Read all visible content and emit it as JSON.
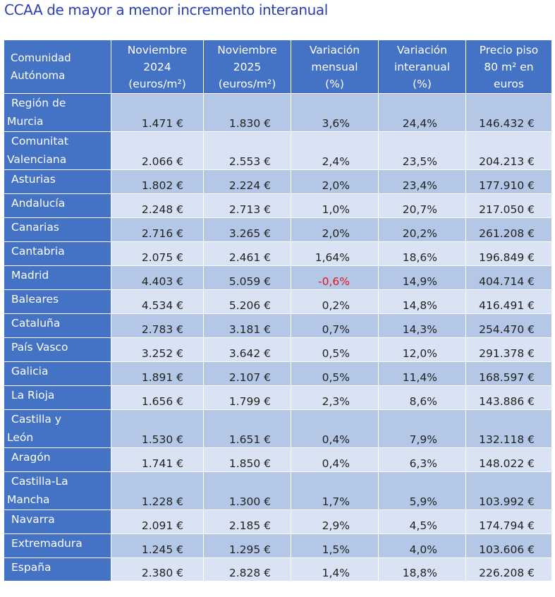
{
  "title": "CCAA de mayor a menor incremento interanual",
  "headers": {
    "comunidad": [
      "Comunidad",
      "Autónoma"
    ],
    "nov2024": [
      "Noviembre",
      "2024",
      "(euros/m²)"
    ],
    "nov2025": [
      "Noviembre",
      "2025",
      "(euros/m²)"
    ],
    "mensual": [
      "Variación",
      "mensual",
      "(%)"
    ],
    "interanual": [
      "Variación",
      "interanual",
      "(%)"
    ],
    "precio": [
      "Precio piso",
      "80 m² en",
      "euros"
    ]
  },
  "rows": [
    {
      "name": [
        "Región de",
        "Murcia"
      ],
      "nov2024": "1.471 €",
      "nov2025": "1.830 €",
      "mensual": "3,6%",
      "interanual": "24,4%",
      "precio": "146.432 €"
    },
    {
      "name": [
        "Comunitat",
        "Valenciana"
      ],
      "nov2024": "2.066 €",
      "nov2025": "2.553 €",
      "mensual": "2,4%",
      "interanual": "23,5%",
      "precio": "204.213 €"
    },
    {
      "name": [
        "Asturias"
      ],
      "nov2024": "1.802 €",
      "nov2025": "2.224 €",
      "mensual": "2,0%",
      "interanual": "23,4%",
      "precio": "177.910 €"
    },
    {
      "name": [
        "Andalucía"
      ],
      "nov2024": "2.248 €",
      "nov2025": "2.713 €",
      "mensual": "1,0%",
      "interanual": "20,7%",
      "precio": "217.050 €"
    },
    {
      "name": [
        "Canarias"
      ],
      "nov2024": "2.716 €",
      "nov2025": "3.265 €",
      "mensual": "2,0%",
      "interanual": "20,2%",
      "precio": "261.208 €"
    },
    {
      "name": [
        "Cantabria"
      ],
      "nov2024": "2.075 €",
      "nov2025": "2.461 €",
      "mensual": "1,64%",
      "interanual": "18,6%",
      "precio": "196.849 €"
    },
    {
      "name": [
        "Madrid"
      ],
      "nov2024": "4.403 €",
      "nov2025": "5.059 €",
      "mensual": "-0,6%",
      "interanual": "14,9%",
      "precio": "404.714 €",
      "negative": true
    },
    {
      "name": [
        "Baleares"
      ],
      "nov2024": "4.534 €",
      "nov2025": "5.206 €",
      "mensual": "0,2%",
      "interanual": "14,8%",
      "precio": "416.491 €"
    },
    {
      "name": [
        "Cataluña"
      ],
      "nov2024": "2.783 €",
      "nov2025": "3.181 €",
      "mensual": "0,7%",
      "interanual": "14,3%",
      "precio": "254.470 €"
    },
    {
      "name": [
        "País Vasco"
      ],
      "nov2024": "3.252 €",
      "nov2025": "3.642 €",
      "mensual": "0,5%",
      "interanual": "12,0%",
      "precio": "291.378 €"
    },
    {
      "name": [
        "Galicia"
      ],
      "nov2024": "1.891 €",
      "nov2025": "2.107 €",
      "mensual": "0,5%",
      "interanual": "11,4%",
      "precio": "168.597 €"
    },
    {
      "name": [
        "La Rioja"
      ],
      "nov2024": "1.656 €",
      "nov2025": "1.799 €",
      "mensual": "2,3%",
      "interanual": "8,6%",
      "precio": "143.886 €"
    },
    {
      "name": [
        "Castilla y",
        "León"
      ],
      "nov2024": "1.530 €",
      "nov2025": "1.651 €",
      "mensual": "0,4%",
      "interanual": "7,9%",
      "precio": "132.118 €"
    },
    {
      "name": [
        "Aragón"
      ],
      "nov2024": "1.741 €",
      "nov2025": "1.850 €",
      "mensual": "0,4%",
      "interanual": "6,3%",
      "precio": "148.022 €"
    },
    {
      "name": [
        "Castilla-La",
        "Mancha"
      ],
      "nov2024": "1.228 €",
      "nov2025": "1.300 €",
      "mensual": "1,7%",
      "interanual": "5,9%",
      "precio": "103.992 €"
    },
    {
      "name": [
        "Navarra"
      ],
      "nov2024": "2.091 €",
      "nov2025": "2.185 €",
      "mensual": "2,9%",
      "interanual": "4,5%",
      "precio": "174.794 €"
    },
    {
      "name": [
        "Extremadura"
      ],
      "nov2024": "1.245 €",
      "nov2025": "1.295 €",
      "mensual": "1,5%",
      "interanual": "4,0%",
      "precio": "103.606 €"
    },
    {
      "name": [
        "España"
      ],
      "nov2024": "2.380 €",
      "nov2025": "2.828 €",
      "mensual": "1,4%",
      "interanual": "18,8%",
      "precio": "226.208 €"
    }
  ],
  "colors": {
    "header": "#4472c4",
    "row_odd": "#b4c7e7",
    "row_even": "#dae3f3",
    "negative": "#e0141e",
    "title": "#2b3fb5"
  }
}
